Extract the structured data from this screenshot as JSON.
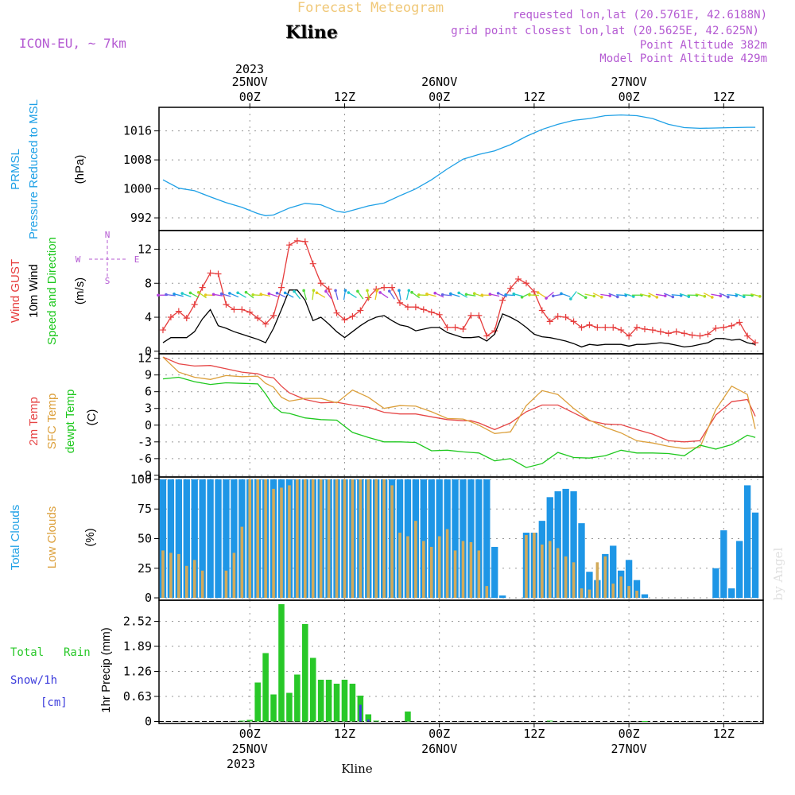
{
  "header": {
    "title": "Forecast Meteogram",
    "location": "Kline",
    "model": "ICON-EU, ~ 7km",
    "requested": "requested lon,lat (20.5761E, 42.6188N)",
    "grid_point": "grid point closest lon,lat (20.5625E, 42.625N)",
    "point_altitude": "Point Altitude 382m",
    "model_altitude": "Model Point Altitude 429m"
  },
  "time_axis": {
    "year": "2023",
    "top_labels": [
      {
        "hour": 0,
        "line1": "25NOV",
        "line2": "00Z"
      },
      {
        "hour": 12,
        "line1": "",
        "line2": "12Z"
      },
      {
        "hour": 24,
        "line1": "26NOV",
        "line2": "00Z"
      },
      {
        "hour": 36,
        "line1": "",
        "line2": "12Z"
      },
      {
        "hour": 48,
        "line1": "27NOV",
        "line2": "00Z"
      },
      {
        "hour": 60,
        "line1": "",
        "line2": "12Z"
      }
    ],
    "bottom_labels": [
      {
        "hour": 0,
        "line1": "00Z",
        "line2": "25NOV"
      },
      {
        "hour": 12,
        "line1": "12Z",
        "line2": ""
      },
      {
        "hour": 24,
        "line1": "00Z",
        "line2": "26NOV"
      },
      {
        "hour": 36,
        "line1": "12Z",
        "line2": ""
      },
      {
        "hour": 48,
        "line1": "00Z",
        "line2": "27NOV"
      },
      {
        "hour": 60,
        "line1": "12Z",
        "line2": ""
      }
    ],
    "footer_label": "Kline",
    "range_hours": [
      -11.5,
      65
    ]
  },
  "credit": "by Angel",
  "colors": {
    "pressure": "#1ea0e6",
    "gust": "#e63c3c",
    "wind": "#000000",
    "t2m": "#e64646",
    "sfc": "#dca03c",
    "dew": "#1ec81e",
    "total_clouds": "#1e96e6",
    "low_clouds": "#d2aa5a",
    "rain": "#28c828",
    "snow": "#3c3cdc",
    "label_purple": "#b45ad2",
    "title_gold": "#f0c878"
  },
  "panel_labels": {
    "pressure": [
      "PRMSL",
      "Pressure Reduced to MSL",
      "(hPa)"
    ],
    "wind": [
      "Wind GUST",
      "10m Wind",
      "Speed and Direction",
      "(m/s)"
    ],
    "temp": [
      "2m Temp",
      "SFC Temp",
      "dewpt Temp",
      "(C)"
    ],
    "clouds": [
      "Total Clouds",
      "Low Clouds",
      "(%)"
    ],
    "precip": [
      "Total",
      "Rain",
      "Snow/1h",
      "[cm]",
      "1hr Precip (mm)"
    ],
    "compass": [
      "N",
      "W",
      "E",
      "S"
    ]
  },
  "chart_data": [
    {
      "type": "line",
      "name": "pressure",
      "ylabel": "(hPa)",
      "yticks": [
        992,
        1000,
        1008,
        1016
      ],
      "ylim": [
        988.5,
        1022.5
      ],
      "x": [
        -11,
        -9,
        -7,
        -5,
        -3,
        -1,
        1,
        2,
        3,
        5,
        7,
        9,
        11,
        12,
        13,
        15,
        17,
        19,
        21,
        23,
        25,
        27,
        29,
        31,
        33,
        35,
        37,
        39,
        41,
        43,
        45,
        47,
        49,
        51,
        53,
        55,
        57,
        59,
        61,
        63,
        64
      ],
      "series": [
        {
          "name": "PRMSL",
          "values": [
            1002.5,
            1000.2,
            999.5,
            997.8,
            996.2,
            994.9,
            993.2,
            992.6,
            992.8,
            994.7,
            996.0,
            995.6,
            993.8,
            993.5,
            994.1,
            995.3,
            996.1,
            998.1,
            1000.0,
            1002.5,
            1005.5,
            1008.2,
            1009.5,
            1010.5,
            1012.2,
            1014.5,
            1016.4,
            1017.8,
            1018.9,
            1019.4,
            1020.2,
            1020.4,
            1020.2,
            1019.4,
            1017.8,
            1016.9,
            1016.7,
            1016.8,
            1016.9,
            1017.0,
            1017.0
          ]
        }
      ]
    },
    {
      "type": "line",
      "name": "wind",
      "ylabel": "(m/s)",
      "yticks": [
        0,
        4,
        8,
        12
      ],
      "ylim": [
        -0.3,
        14.2
      ],
      "x": [
        -11,
        -10,
        -9,
        -8,
        -7,
        -6,
        -5,
        -4,
        -3,
        -2,
        -1,
        0,
        1,
        2,
        3,
        4,
        5,
        6,
        7,
        8,
        9,
        10,
        11,
        12,
        13,
        14,
        15,
        16,
        17,
        18,
        19,
        20,
        21,
        22,
        23,
        24,
        25,
        26,
        27,
        28,
        29,
        30,
        31,
        32,
        33,
        34,
        35,
        36,
        37,
        38,
        39,
        40,
        41,
        42,
        43,
        44,
        45,
        46,
        47,
        48,
        49,
        50,
        51,
        52,
        53,
        54,
        55,
        56,
        57,
        58,
        59,
        60,
        61,
        62,
        63,
        64
      ],
      "series": [
        {
          "name": "Wind GUST",
          "values": [
            2.5,
            4.0,
            4.7,
            3.9,
            5.5,
            7.5,
            9.2,
            9.1,
            5.5,
            4.9,
            4.9,
            4.6,
            3.9,
            3.2,
            4.2,
            7.5,
            12.5,
            13.0,
            12.9,
            10.3,
            8.0,
            7.3,
            4.5,
            3.7,
            4.1,
            4.8,
            6.3,
            7.3,
            7.5,
            7.5,
            5.7,
            5.2,
            5.2,
            4.9,
            4.6,
            4.3,
            2.8,
            2.8,
            2.6,
            4.2,
            4.2,
            1.8,
            2.4,
            6.0,
            7.4,
            8.5,
            8.0,
            7.0,
            4.8,
            3.5,
            4.1,
            4.0,
            3.5,
            2.8,
            3.1,
            2.8,
            2.8,
            2.8,
            2.5,
            1.8,
            2.8,
            2.6,
            2.5,
            2.3,
            2.1,
            2.3,
            2.1,
            1.9,
            1.8,
            2.0,
            2.7,
            2.8,
            3.0,
            3.4,
            1.8,
            1.0
          ]
        },
        {
          "name": "10m Wind",
          "values": [
            1.0,
            1.6,
            1.6,
            1.6,
            2.3,
            3.8,
            4.9,
            3.0,
            2.7,
            2.3,
            2.0,
            1.7,
            1.4,
            1.0,
            2.7,
            4.9,
            7.2,
            7.2,
            6.0,
            3.6,
            4.0,
            3.2,
            2.3,
            1.6,
            2.3,
            3.0,
            3.6,
            4.0,
            4.2,
            3.6,
            3.1,
            2.9,
            2.4,
            2.6,
            2.8,
            2.8,
            2.2,
            1.9,
            1.6,
            1.6,
            1.7,
            1.2,
            2.0,
            4.4,
            4.0,
            3.5,
            2.8,
            2.0,
            1.7,
            1.6,
            1.4,
            1.2,
            0.9,
            0.5,
            0.8,
            0.7,
            0.8,
            0.8,
            0.8,
            0.6,
            0.8,
            0.8,
            0.9,
            1.0,
            0.9,
            0.7,
            0.5,
            0.6,
            0.8,
            1.0,
            1.5,
            1.5,
            1.3,
            1.4,
            1.0,
            0.8
          ]
        }
      ]
    },
    {
      "type": "line",
      "name": "temperature",
      "ylabel": "(C)",
      "yticks": [
        -9,
        -6,
        -3,
        0,
        3,
        6,
        9,
        12
      ],
      "ylim": [
        -9.3,
        12.8
      ],
      "x": [
        -11,
        -9,
        -7,
        -5,
        -3,
        -1,
        1,
        2,
        3,
        4,
        5,
        7,
        9,
        11,
        13,
        15,
        17,
        19,
        21,
        23,
        25,
        27,
        28,
        29,
        31,
        33,
        35,
        37,
        39,
        41,
        43,
        45,
        47,
        49,
        51,
        53,
        55,
        57,
        59,
        61,
        63,
        64
      ],
      "series": [
        {
          "name": "2m Temp",
          "values": [
            12.2,
            11.0,
            10.6,
            10.7,
            10.1,
            9.5,
            9.2,
            8.7,
            8.5,
            7.0,
            5.8,
            4.6,
            4.0,
            4.1,
            3.6,
            3.2,
            2.3,
            2.0,
            2.0,
            1.5,
            1.0,
            0.8,
            0.8,
            0.4,
            -0.8,
            0.4,
            2.4,
            3.6,
            3.6,
            2.2,
            0.8,
            0.2,
            0.1,
            -0.8,
            -1.6,
            -2.8,
            -3.0,
            -2.8,
            1.8,
            4.2,
            4.6,
            1.6
          ]
        },
        {
          "name": "SFC Temp",
          "values": [
            12.2,
            9.5,
            8.6,
            8.2,
            8.9,
            8.7,
            8.8,
            7.5,
            6.8,
            5.0,
            4.3,
            4.8,
            4.8,
            4.0,
            6.3,
            5.0,
            3.0,
            3.5,
            3.4,
            2.4,
            1.2,
            1.1,
            0.6,
            0.0,
            -1.5,
            -1.2,
            3.5,
            6.2,
            5.5,
            3.0,
            0.9,
            -0.4,
            -1.4,
            -2.8,
            -3.2,
            -3.8,
            -4.2,
            -4.0,
            2.8,
            7.0,
            5.5,
            -0.7
          ]
        },
        {
          "name": "dewpt Temp",
          "values": [
            8.3,
            8.6,
            7.8,
            7.3,
            7.6,
            7.5,
            7.4,
            5.6,
            3.4,
            2.3,
            2.1,
            1.3,
            1.0,
            0.9,
            -1.3,
            -2.2,
            -3.0,
            -3.0,
            -3.1,
            -4.6,
            -4.5,
            -4.8,
            -4.9,
            -5.0,
            -6.4,
            -6.0,
            -7.6,
            -6.9,
            -4.9,
            -5.8,
            -5.9,
            -5.5,
            -4.5,
            -5.0,
            -5.0,
            -5.1,
            -5.5,
            -3.6,
            -4.3,
            -3.5,
            -1.8,
            -2.2
          ]
        }
      ]
    },
    {
      "type": "bar",
      "name": "clouds",
      "ylabel": "(%)",
      "yticks": [
        0,
        25,
        50,
        75,
        100
      ],
      "ylim": [
        -2,
        102
      ],
      "x": [
        -11,
        -10,
        -9,
        -8,
        -7,
        -6,
        -5,
        -4,
        -3,
        -2,
        -1,
        0,
        1,
        2,
        3,
        4,
        5,
        6,
        7,
        8,
        9,
        10,
        11,
        12,
        13,
        14,
        15,
        16,
        17,
        18,
        19,
        20,
        21,
        22,
        23,
        24,
        25,
        26,
        27,
        28,
        29,
        30,
        31,
        32,
        33,
        34,
        35,
        36,
        37,
        38,
        39,
        40,
        41,
        42,
        43,
        44,
        45,
        46,
        47,
        48,
        49,
        50,
        51,
        52,
        53,
        54,
        55,
        56,
        57,
        58,
        59,
        60,
        61,
        62,
        63,
        64
      ],
      "series": [
        {
          "name": "Total Clouds",
          "values": [
            100,
            100,
            100,
            100,
            100,
            100,
            100,
            100,
            100,
            100,
            100,
            100,
            100,
            100,
            100,
            100,
            100,
            100,
            100,
            100,
            100,
            100,
            100,
            100,
            100,
            100,
            100,
            100,
            100,
            100,
            100,
            100,
            100,
            100,
            100,
            100,
            100,
            100,
            100,
            100,
            100,
            100,
            43,
            2,
            0,
            0,
            55,
            55,
            65,
            85,
            90,
            92,
            90,
            63,
            22,
            15,
            37,
            44,
            23,
            32,
            15,
            3,
            0,
            0,
            0,
            0,
            0,
            0,
            0,
            0,
            25,
            57,
            8,
            48,
            95,
            72
          ]
        },
        {
          "name": "Low Clouds",
          "values": [
            40,
            38,
            37,
            27,
            32,
            23,
            0,
            0,
            23,
            38,
            60,
            100,
            100,
            100,
            92,
            93,
            95,
            100,
            100,
            100,
            100,
            100,
            100,
            100,
            100,
            100,
            100,
            100,
            100,
            95,
            55,
            52,
            65,
            48,
            43,
            52,
            58,
            40,
            48,
            47,
            40,
            10,
            0,
            0,
            0,
            0,
            53,
            55,
            45,
            48,
            42,
            35,
            30,
            8,
            7,
            30,
            35,
            12,
            18,
            10,
            6,
            0,
            0,
            0,
            0,
            0,
            0,
            0,
            0,
            0,
            0,
            0,
            0,
            0,
            0,
            0
          ]
        }
      ]
    },
    {
      "type": "bar",
      "name": "precipitation",
      "ylabel": "1hr Precip (mm)",
      "yticks": [
        0,
        0.63,
        1.26,
        1.89,
        2.52
      ],
      "ylim": [
        -0.05,
        3.05
      ],
      "x": [
        -1,
        0,
        1,
        2,
        3,
        4,
        5,
        6,
        7,
        8,
        9,
        10,
        11,
        12,
        13,
        14,
        15,
        16,
        20,
        38,
        50
      ],
      "series": [
        {
          "name": "Total Rain",
          "values": [
            0.02,
            0.04,
            0.98,
            1.72,
            0.68,
            2.95,
            0.72,
            1.18,
            2.45,
            1.6,
            1.05,
            1.05,
            0.95,
            1.05,
            0.95,
            0.65,
            0.18,
            0.02,
            0.25,
            0.02,
            0.01
          ]
        },
        {
          "name": "Snow/1h",
          "values": [
            0,
            0,
            0,
            0,
            0,
            0,
            0,
            0,
            0,
            0,
            0,
            0,
            0,
            0,
            0,
            0.42,
            0.05,
            0,
            0,
            0,
            0
          ]
        }
      ]
    }
  ]
}
